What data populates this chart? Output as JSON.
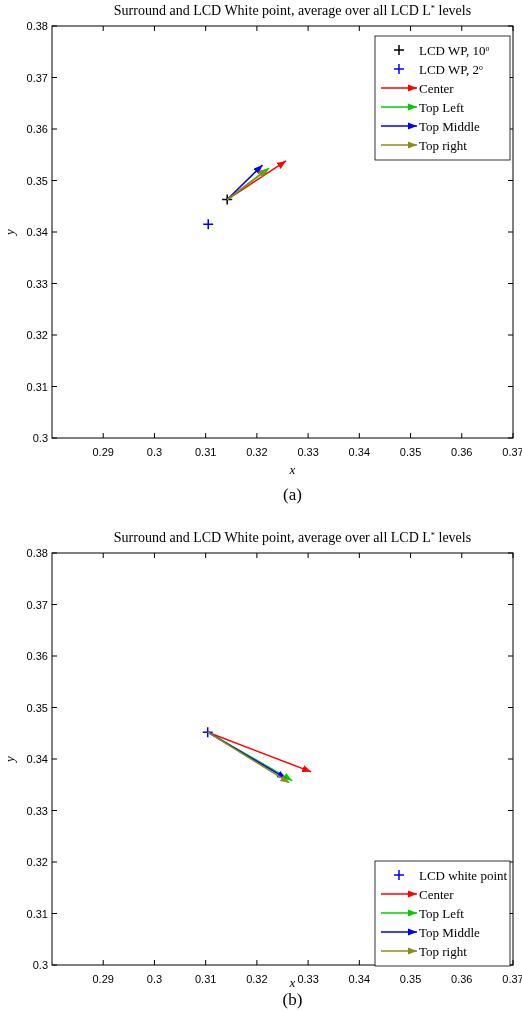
{
  "chart_data": [
    {
      "type": "scatter",
      "title": "Surround and LCD White point, average over all LCD L$^{*}$ levels",
      "xlabel": "x",
      "ylabel": "y",
      "xlim": [
        0.28,
        0.37
      ],
      "ylim": [
        0.3,
        0.38
      ],
      "xticks": [
        0.29,
        0.3,
        0.31,
        0.32,
        0.33,
        0.34,
        0.35,
        0.36,
        0.37
      ],
      "yticks": [
        0.3,
        0.31,
        0.32,
        0.33,
        0.34,
        0.35,
        0.36,
        0.37,
        0.38
      ],
      "legend": "top right",
      "annotations": [
        "(a)"
      ],
      "series": [
        {
          "name": "LCD WP, 10$^{o}$",
          "marker": "cross",
          "color": "#000000",
          "x": [
            0.3142
          ],
          "values": [
            0.3463
          ]
        },
        {
          "name": "LCD WP, 2$^{o}$",
          "marker": "cross",
          "color": "#0000ff",
          "x": [
            0.3105
          ],
          "values": [
            0.3415
          ]
        },
        {
          "name": "Center",
          "type": "line",
          "color": "#ff0000",
          "x": [
            0.3142,
            0.3257
          ],
          "values": [
            0.3463,
            0.3538
          ]
        },
        {
          "name": "Top Left",
          "type": "line",
          "color": "#00cc00",
          "x": [
            0.3142,
            0.3224
          ],
          "values": [
            0.3463,
            0.3524
          ]
        },
        {
          "name": "Top Middle",
          "type": "line",
          "color": "#0000ff",
          "x": [
            0.3142,
            0.3211
          ],
          "values": [
            0.3463,
            0.353
          ]
        },
        {
          "name": "Top right",
          "type": "line",
          "color": "#8c8c1a",
          "x": [
            0.3142,
            0.322
          ],
          "values": [
            0.3463,
            0.3522
          ]
        }
      ]
    },
    {
      "type": "scatter",
      "title": "Surround and LCD White point, average over all LCD L$^{*}$ levels",
      "xlabel": "x",
      "ylabel": "y",
      "xlim": [
        0.28,
        0.37
      ],
      "ylim": [
        0.3,
        0.38
      ],
      "xticks": [
        0.29,
        0.3,
        0.31,
        0.32,
        0.33,
        0.34,
        0.35,
        0.36,
        0.37
      ],
      "yticks": [
        0.3,
        0.31,
        0.32,
        0.33,
        0.34,
        0.35,
        0.36,
        0.37,
        0.38
      ],
      "legend": "bottom right",
      "annotations": [
        "(b)"
      ],
      "series": [
        {
          "name": "LCD white point",
          "marker": "cross",
          "color": "#0000ff",
          "x": [
            0.3104
          ],
          "values": [
            0.3452
          ]
        },
        {
          "name": "Center",
          "type": "line",
          "color": "#ff0000",
          "x": [
            0.3104,
            0.3306
          ],
          "values": [
            0.3452,
            0.3375
          ]
        },
        {
          "name": "Top Left",
          "type": "line",
          "color": "#00cc00",
          "x": [
            0.3104,
            0.3269
          ],
          "values": [
            0.3452,
            0.3358
          ]
        },
        {
          "name": "Top Middle",
          "type": "line",
          "color": "#0000ff",
          "x": [
            0.3104,
            0.3257
          ],
          "values": [
            0.3452,
            0.3362
          ]
        },
        {
          "name": "Top right",
          "type": "line",
          "color": "#8c8c1a",
          "x": [
            0.3104,
            0.3263
          ],
          "values": [
            0.3452,
            0.3354
          ]
        }
      ]
    }
  ]
}
